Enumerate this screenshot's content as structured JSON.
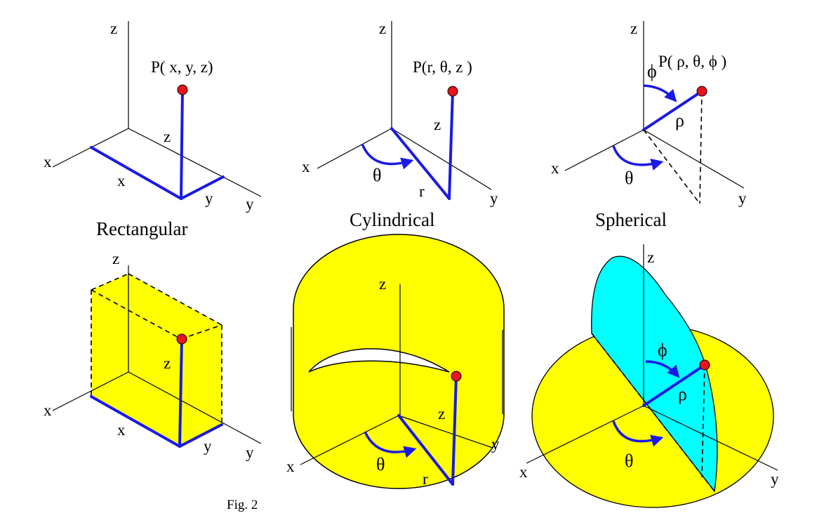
{
  "figure": {
    "caption": "Fig. 2",
    "panels": {
      "rectangular": {
        "title": "Rectangular",
        "point_label": "P( x, y, z)",
        "axes": {
          "x": "x",
          "y": "y",
          "z": "z"
        },
        "segments": {
          "x": "x",
          "y": "y",
          "z": "z"
        },
        "solid": {
          "axes": {
            "x": "x",
            "y": "y",
            "z": "z"
          },
          "segments": {
            "x": "x",
            "y": "y",
            "z": "z"
          }
        }
      },
      "cylindrical": {
        "title": "Cylindrical",
        "point_label": "P(r, θ, z )",
        "axes": {
          "x": "x",
          "y": "y",
          "z": "z"
        },
        "segments": {
          "r": "r",
          "theta": "θ",
          "z": "z"
        },
        "solid": {
          "axes": {
            "x": "x",
            "y": "y",
            "z": "z"
          },
          "segments": {
            "r": "r",
            "theta": "θ",
            "z": "z"
          }
        }
      },
      "spherical": {
        "title": "Spherical",
        "point_label": "P( ρ, θ, ϕ )",
        "axes": {
          "x": "x",
          "y": "y",
          "z": "z"
        },
        "segments": {
          "rho": "ρ",
          "theta": "θ",
          "phi": "ϕ"
        },
        "solid": {
          "axes": {
            "x": "x",
            "y": "y",
            "z": "z"
          },
          "segments": {
            "rho": "ρ",
            "theta": "θ",
            "phi": "ϕ"
          }
        }
      }
    },
    "colors": {
      "vector": "#1a1ae6",
      "point": "#e8141e",
      "surface_yellow": "#ffff00",
      "surface_cyan": "#00ffff"
    }
  }
}
